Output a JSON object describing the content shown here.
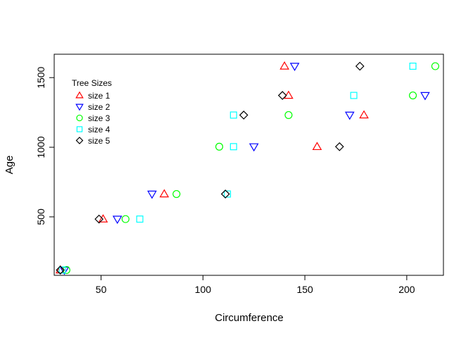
{
  "chart_data": {
    "type": "scatter",
    "title": "",
    "xlabel": "Circumference",
    "ylabel": "Age",
    "xlim": [
      27,
      218
    ],
    "ylim": [
      80,
      1668
    ],
    "xticks": [
      50,
      100,
      150,
      200
    ],
    "yticks": [
      500,
      1000,
      1500
    ],
    "grid": false,
    "legend": {
      "title": "Tree Sizes",
      "position": "top-left",
      "entries": [
        "size 1",
        "size 2",
        "size 3",
        "size 4",
        "size 5"
      ]
    },
    "ages": [
      118,
      484,
      664,
      1004,
      1231,
      1372,
      1582
    ],
    "series": [
      {
        "name": "size 1",
        "color": "#ff0000",
        "marker": "triangle-up",
        "x": [
          30,
          51,
          81,
          156,
          179,
          142,
          140
        ]
      },
      {
        "name": "size 2",
        "color": "#0000ff",
        "marker": "triangle-down",
        "x": [
          32,
          58,
          75,
          125,
          172,
          209,
          145
        ]
      },
      {
        "name": "size 3",
        "color": "#00ff00",
        "marker": "circle",
        "x": [
          33,
          62,
          87,
          108,
          142,
          203,
          214
        ]
      },
      {
        "name": "size 4",
        "color": "#00ffff",
        "marker": "square",
        "x": [
          31,
          69,
          112,
          115,
          115,
          174,
          203
        ]
      },
      {
        "name": "size 5",
        "color": "#000000",
        "marker": "diamond",
        "x": [
          30,
          49,
          111,
          167,
          120,
          139,
          177
        ]
      }
    ]
  }
}
